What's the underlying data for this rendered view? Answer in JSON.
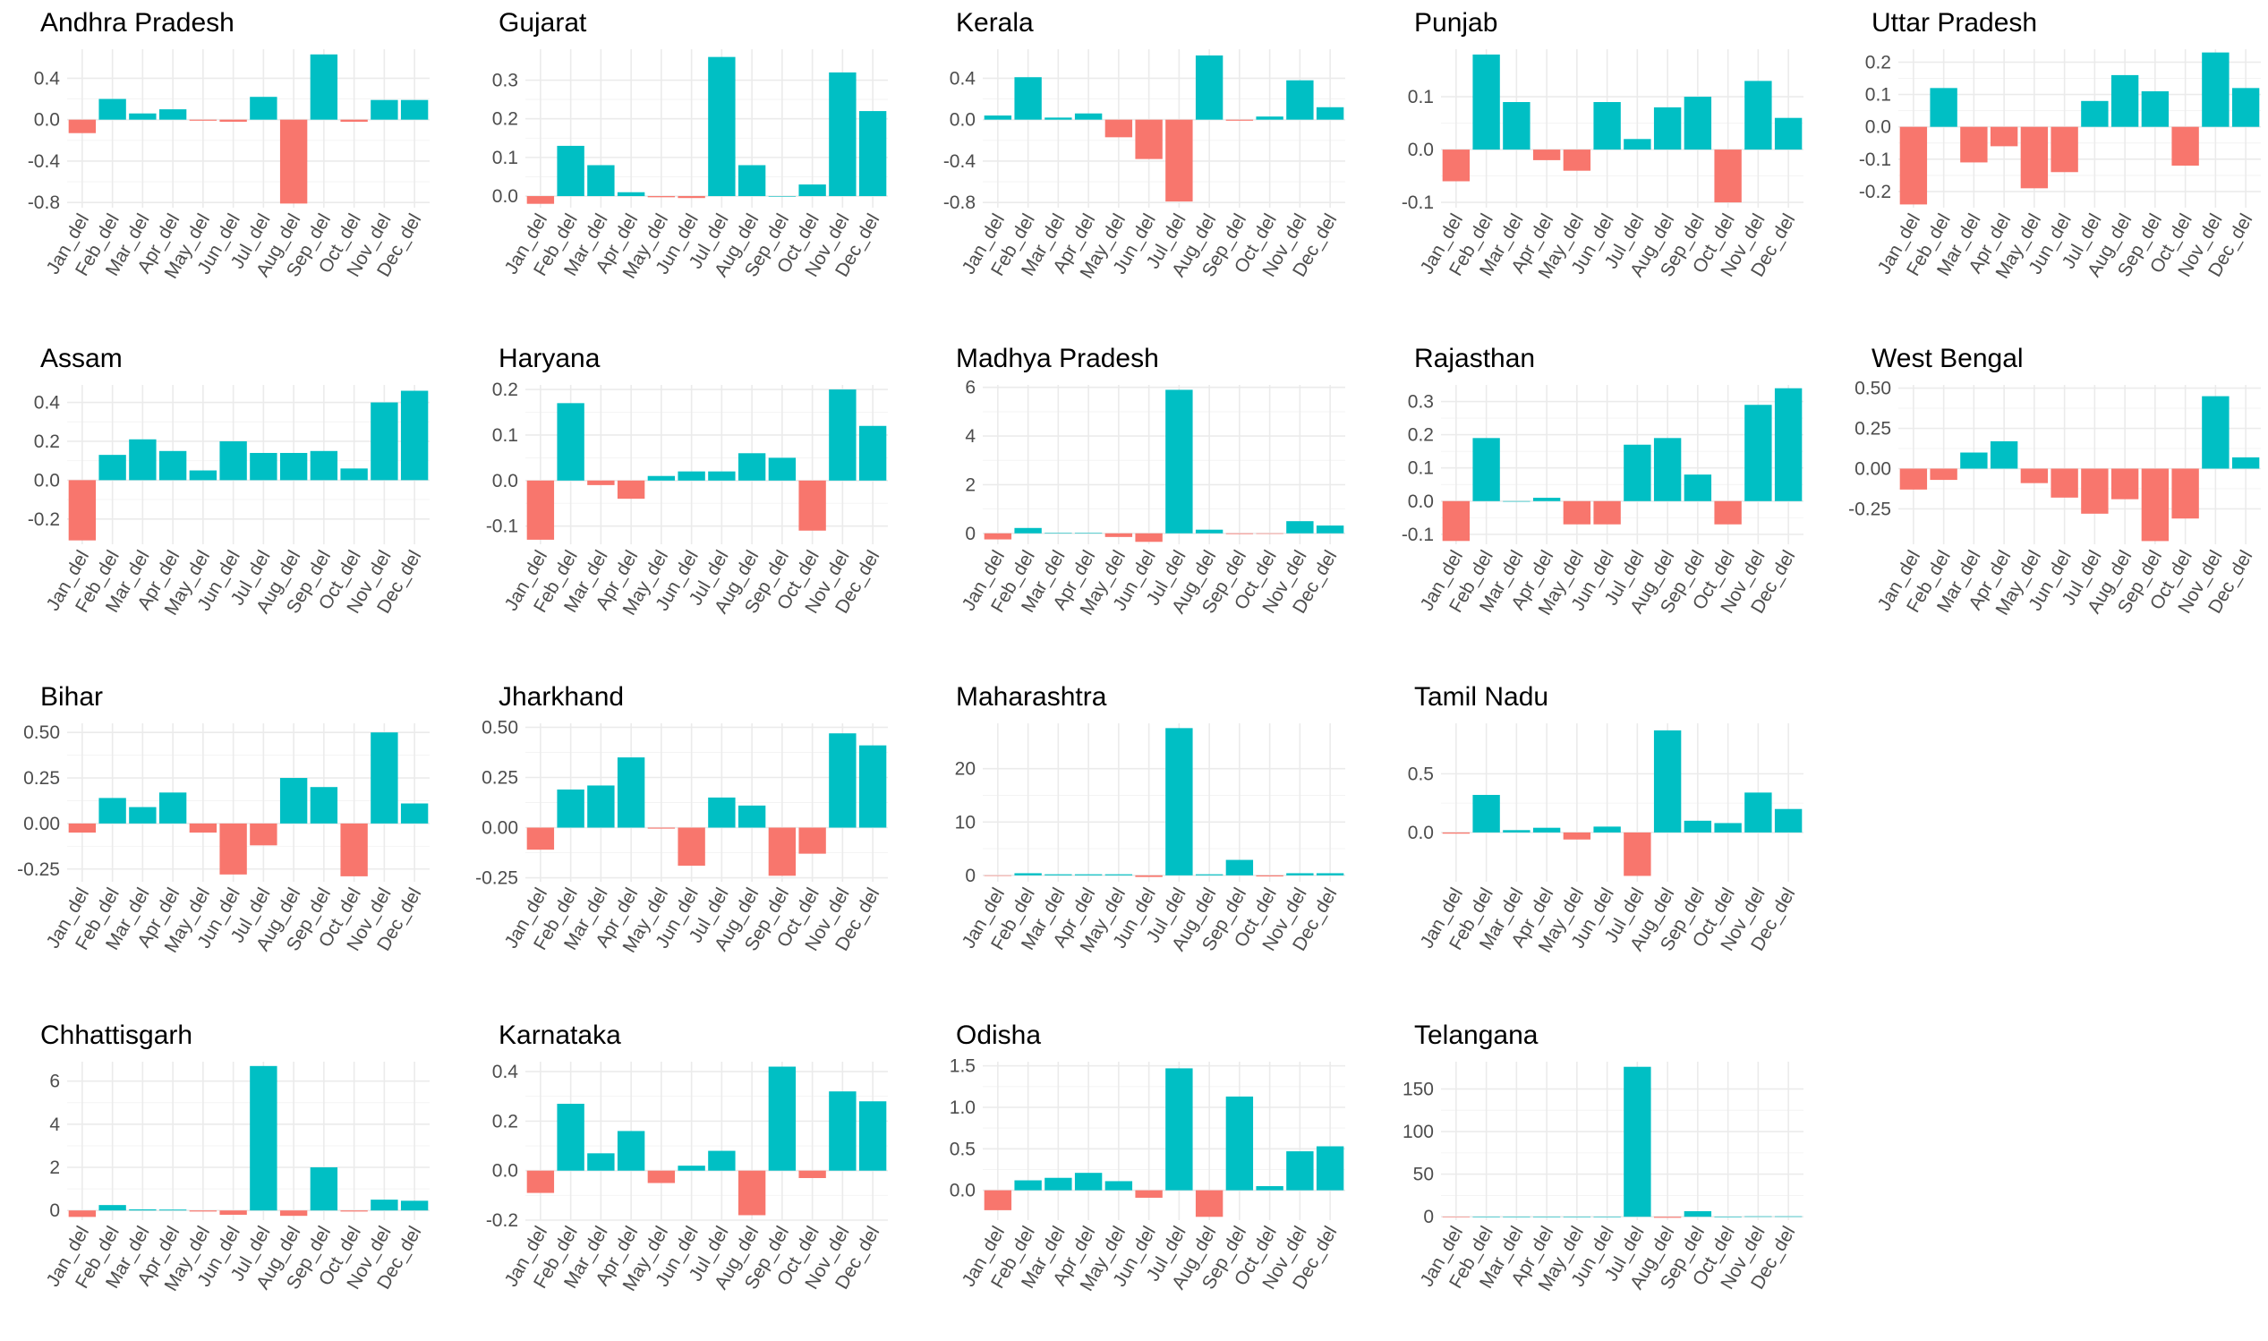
{
  "colors": {
    "positive": "#00BFC4",
    "negative": "#F8766D",
    "grid": "#ebebeb",
    "text": "#4d4d4d"
  },
  "chart_data": [
    {
      "type": "bar",
      "title": "Andhra Pradesh",
      "categories": [
        "Jan_del",
        "Feb_del",
        "Mar_del",
        "Apr_del",
        "May_del",
        "Jun_del",
        "Jul_del",
        "Aug_del",
        "Sep_del",
        "Oct_del",
        "Nov_del",
        "Dec_del"
      ],
      "values": [
        -0.13,
        0.2,
        0.06,
        0.1,
        -0.01,
        -0.02,
        0.22,
        -0.81,
        0.63,
        -0.02,
        0.19,
        0.19
      ],
      "yticks": [
        -0.8,
        -0.4,
        0.0,
        0.4
      ],
      "ytick_labels": [
        "-0.8",
        "-0.4",
        "0.0",
        "0.4"
      ],
      "ylim": [
        -0.85,
        0.68
      ],
      "grid": true
    },
    {
      "type": "bar",
      "title": "Gujarat",
      "categories": [
        "Jan_del",
        "Feb_del",
        "Mar_del",
        "Apr_del",
        "May_del",
        "Jun_del",
        "Jul_del",
        "Aug_del",
        "Sep_del",
        "Oct_del",
        "Nov_del",
        "Dec_del"
      ],
      "values": [
        -0.02,
        0.13,
        0.08,
        0.01,
        -0.003,
        -0.005,
        0.36,
        0.08,
        0.0,
        0.03,
        0.32,
        0.22
      ],
      "yticks": [
        0.0,
        0.1,
        0.2,
        0.3
      ],
      "ytick_labels": [
        "0.0",
        "0.1",
        "0.2",
        "0.3"
      ],
      "ylim": [
        -0.03,
        0.38
      ],
      "grid": true
    },
    {
      "type": "bar",
      "title": "Kerala",
      "categories": [
        "Jan_del",
        "Feb_del",
        "Mar_del",
        "Apr_del",
        "May_del",
        "Jun_del",
        "Jul_del",
        "Aug_del",
        "Sep_del",
        "Oct_del",
        "Nov_del",
        "Dec_del"
      ],
      "values": [
        0.04,
        0.41,
        0.02,
        0.06,
        -0.17,
        -0.38,
        -0.79,
        0.62,
        -0.01,
        0.03,
        0.38,
        0.12
      ],
      "yticks": [
        -0.8,
        -0.4,
        0.0,
        0.4
      ],
      "ytick_labels": [
        "-0.8",
        "-0.4",
        "0.0",
        "0.4"
      ],
      "ylim": [
        -0.85,
        0.68
      ],
      "grid": true
    },
    {
      "type": "bar",
      "title": "Punjab",
      "categories": [
        "Jan_del",
        "Feb_del",
        "Mar_del",
        "Apr_del",
        "May_del",
        "Jun_del",
        "Jul_del",
        "Aug_del",
        "Sep_del",
        "Oct_del",
        "Nov_del",
        "Dec_del"
      ],
      "values": [
        -0.06,
        0.18,
        0.09,
        -0.02,
        -0.04,
        0.09,
        0.02,
        0.08,
        0.1,
        -0.1,
        0.13,
        0.06
      ],
      "yticks": [
        -0.1,
        0.0,
        0.1
      ],
      "ytick_labels": [
        "-0.1",
        "0.0",
        "0.1"
      ],
      "ylim": [
        -0.11,
        0.19
      ],
      "grid": true
    },
    {
      "type": "bar",
      "title": "Uttar Pradesh",
      "categories": [
        "Jan_del",
        "Feb_del",
        "Mar_del",
        "Apr_del",
        "May_del",
        "Jun_del",
        "Jul_del",
        "Aug_del",
        "Sep_del",
        "Oct_del",
        "Nov_del",
        "Dec_del"
      ],
      "values": [
        -0.24,
        0.12,
        -0.11,
        -0.06,
        -0.19,
        -0.14,
        0.08,
        0.16,
        0.11,
        -0.12,
        0.23,
        0.12
      ],
      "yticks": [
        -0.2,
        -0.1,
        0.0,
        0.1,
        0.2
      ],
      "ytick_labels": [
        "-0.2",
        "-0.1",
        "0.0",
        "0.1",
        "0.2"
      ],
      "ylim": [
        -0.25,
        0.24
      ],
      "grid": true
    },
    {
      "type": "bar",
      "title": "Assam",
      "categories": [
        "Jan_del",
        "Feb_del",
        "Mar_del",
        "Apr_del",
        "May_del",
        "Jun_del",
        "Jul_del",
        "Aug_del",
        "Sep_del",
        "Oct_del",
        "Nov_del",
        "Dec_del"
      ],
      "values": [
        -0.31,
        0.13,
        0.21,
        0.15,
        0.05,
        0.2,
        0.14,
        0.14,
        0.15,
        0.06,
        0.4,
        0.46
      ],
      "yticks": [
        -0.2,
        0.0,
        0.2,
        0.4
      ],
      "ytick_labels": [
        "-0.2",
        "0.0",
        "0.2",
        "0.4"
      ],
      "ylim": [
        -0.33,
        0.49
      ],
      "grid": true
    },
    {
      "type": "bar",
      "title": "Haryana",
      "categories": [
        "Jan_del",
        "Feb_del",
        "Mar_del",
        "Apr_del",
        "May_del",
        "Jun_del",
        "Jul_del",
        "Aug_del",
        "Sep_del",
        "Oct_del",
        "Nov_del",
        "Dec_del"
      ],
      "values": [
        -0.13,
        0.17,
        -0.01,
        -0.04,
        0.01,
        0.02,
        0.02,
        0.06,
        0.05,
        -0.11,
        0.2,
        0.12
      ],
      "yticks": [
        -0.1,
        0.0,
        0.1,
        0.2
      ],
      "ytick_labels": [
        "-0.1",
        "0.0",
        "0.1",
        "0.2"
      ],
      "ylim": [
        -0.14,
        0.21
      ],
      "grid": true
    },
    {
      "type": "bar",
      "title": "Madhya Pradesh",
      "categories": [
        "Jan_del",
        "Feb_del",
        "Mar_del",
        "Apr_del",
        "May_del",
        "Jun_del",
        "Jul_del",
        "Aug_del",
        "Sep_del",
        "Oct_del",
        "Nov_del",
        "Dec_del"
      ],
      "values": [
        -0.25,
        0.22,
        0.02,
        0.02,
        -0.15,
        -0.35,
        5.9,
        0.15,
        -0.03,
        -0.02,
        0.5,
        0.32
      ],
      "yticks": [
        0,
        2,
        4,
        6
      ],
      "ytick_labels": [
        "0",
        "2",
        "4",
        "6"
      ],
      "ylim": [
        -0.45,
        6.1
      ],
      "grid": true
    },
    {
      "type": "bar",
      "title": "Rajasthan",
      "categories": [
        "Jan_del",
        "Feb_del",
        "Mar_del",
        "Apr_del",
        "May_del",
        "Jun_del",
        "Jul_del",
        "Aug_del",
        "Sep_del",
        "Oct_del",
        "Nov_del",
        "Dec_del"
      ],
      "values": [
        -0.12,
        0.19,
        0.0,
        0.01,
        -0.07,
        -0.07,
        0.17,
        0.19,
        0.08,
        -0.07,
        0.29,
        0.34
      ],
      "yticks": [
        -0.1,
        0.0,
        0.1,
        0.2,
        0.3
      ],
      "ytick_labels": [
        "-0.1",
        "0.0",
        "0.1",
        "0.2",
        "0.3"
      ],
      "ylim": [
        -0.13,
        0.35
      ],
      "grid": true
    },
    {
      "type": "bar",
      "title": "West Bengal",
      "categories": [
        "Jan_del",
        "Feb_del",
        "Mar_del",
        "Apr_del",
        "May_del",
        "Jun_del",
        "Jul_del",
        "Aug_del",
        "Sep_del",
        "Oct_del",
        "Nov_del",
        "Dec_del"
      ],
      "values": [
        -0.13,
        -0.07,
        0.1,
        0.17,
        -0.09,
        -0.18,
        -0.28,
        -0.19,
        -0.45,
        -0.31,
        0.45,
        0.07
      ],
      "yticks": [
        -0.25,
        0.0,
        0.25,
        0.5
      ],
      "ytick_labels": [
        "-0.25",
        "0.00",
        "0.25",
        "0.50"
      ],
      "ylim": [
        -0.47,
        0.52
      ],
      "grid": true
    },
    {
      "type": "bar",
      "title": "Bihar",
      "categories": [
        "Jan_del",
        "Feb_del",
        "Mar_del",
        "Apr_del",
        "May_del",
        "Jun_del",
        "Jul_del",
        "Aug_del",
        "Sep_del",
        "Oct_del",
        "Nov_del",
        "Dec_del"
      ],
      "values": [
        -0.05,
        0.14,
        0.09,
        0.17,
        -0.05,
        -0.28,
        -0.12,
        0.25,
        0.2,
        -0.29,
        0.5,
        0.11
      ],
      "yticks": [
        -0.25,
        0.0,
        0.25,
        0.5
      ],
      "ytick_labels": [
        "-0.25",
        "0.00",
        "0.25",
        "0.50"
      ],
      "ylim": [
        -0.32,
        0.55
      ],
      "grid": true
    },
    {
      "type": "bar",
      "title": "Jharkhand",
      "categories": [
        "Jan_del",
        "Feb_del",
        "Mar_del",
        "Apr_del",
        "May_del",
        "Jun_del",
        "Jul_del",
        "Aug_del",
        "Sep_del",
        "Oct_del",
        "Nov_del",
        "Dec_del"
      ],
      "values": [
        -0.11,
        0.19,
        0.21,
        0.35,
        -0.005,
        -0.19,
        0.15,
        0.11,
        -0.24,
        -0.13,
        0.47,
        0.41
      ],
      "yticks": [
        -0.25,
        0.0,
        0.25,
        0.5
      ],
      "ytick_labels": [
        "-0.25",
        "0.00",
        "0.25",
        "0.50"
      ],
      "ylim": [
        -0.27,
        0.52
      ],
      "grid": true
    },
    {
      "type": "bar",
      "title": "Maharashtra",
      "categories": [
        "Jan_del",
        "Feb_del",
        "Mar_del",
        "Apr_del",
        "May_del",
        "Jun_del",
        "Jul_del",
        "Aug_del",
        "Sep_del",
        "Oct_del",
        "Nov_del",
        "Dec_del"
      ],
      "values": [
        -0.1,
        0.4,
        0.2,
        0.2,
        0.2,
        -0.3,
        27.6,
        0.2,
        2.9,
        -0.2,
        0.4,
        0.4
      ],
      "yticks": [
        0,
        10,
        20
      ],
      "ytick_labels": [
        "0",
        "10",
        "20"
      ],
      "ylim": [
        -1.2,
        28.5
      ],
      "grid": true
    },
    {
      "type": "bar",
      "title": "Tamil Nadu",
      "categories": [
        "Jan_del",
        "Feb_del",
        "Mar_del",
        "Apr_del",
        "May_del",
        "Jun_del",
        "Jul_del",
        "Aug_del",
        "Sep_del",
        "Oct_del",
        "Nov_del",
        "Dec_del"
      ],
      "values": [
        -0.01,
        0.32,
        0.02,
        0.04,
        -0.06,
        0.05,
        -0.37,
        0.87,
        0.1,
        0.08,
        0.34,
        0.2
      ],
      "yticks": [
        0.0,
        0.5
      ],
      "ytick_labels": [
        "0.0",
        "0.5"
      ],
      "ylim": [
        -0.42,
        0.93
      ],
      "grid": true
    },
    {
      "type": "bar",
      "title": "Chhattisgarh",
      "categories": [
        "Jan_del",
        "Feb_del",
        "Mar_del",
        "Apr_del",
        "May_del",
        "Jun_del",
        "Jul_del",
        "Aug_del",
        "Sep_del",
        "Oct_del",
        "Nov_del",
        "Dec_del"
      ],
      "values": [
        -0.3,
        0.25,
        0.05,
        0.04,
        -0.05,
        -0.2,
        6.7,
        -0.25,
        2.0,
        -0.05,
        0.5,
        0.45
      ],
      "yticks": [
        0,
        2,
        4,
        6
      ],
      "ytick_labels": [
        "0",
        "2",
        "4",
        "6"
      ],
      "ylim": [
        -0.45,
        6.9
      ],
      "grid": true
    },
    {
      "type": "bar",
      "title": "Karnataka",
      "categories": [
        "Jan_del",
        "Feb_del",
        "Mar_del",
        "Apr_del",
        "May_del",
        "Jun_del",
        "Jul_del",
        "Aug_del",
        "Sep_del",
        "Oct_del",
        "Nov_del",
        "Dec_del"
      ],
      "values": [
        -0.09,
        0.27,
        0.07,
        0.16,
        -0.05,
        0.02,
        0.08,
        -0.18,
        0.42,
        -0.03,
        0.32,
        0.28
      ],
      "yticks": [
        -0.2,
        0.0,
        0.2,
        0.4
      ],
      "ytick_labels": [
        "-0.2",
        "0.0",
        "0.2",
        "0.4"
      ],
      "ylim": [
        -0.2,
        0.44
      ],
      "grid": true
    },
    {
      "type": "bar",
      "title": "Odisha",
      "categories": [
        "Jan_del",
        "Feb_del",
        "Mar_del",
        "Apr_del",
        "May_del",
        "Jun_del",
        "Jul_del",
        "Aug_del",
        "Sep_del",
        "Oct_del",
        "Nov_del",
        "Dec_del"
      ],
      "values": [
        -0.24,
        0.12,
        0.15,
        0.21,
        0.11,
        -0.09,
        1.47,
        -0.32,
        1.13,
        0.05,
        0.47,
        0.53
      ],
      "yticks": [
        0.0,
        0.5,
        1.0,
        1.5
      ],
      "ytick_labels": [
        "0.0",
        "0.5",
        "1.0",
        "1.5"
      ],
      "ylim": [
        -0.36,
        1.55
      ],
      "grid": true
    },
    {
      "type": "bar",
      "title": "Telangana",
      "categories": [
        "Jan_del",
        "Feb_del",
        "Mar_del",
        "Apr_del",
        "May_del",
        "Jun_del",
        "Jul_del",
        "Aug_del",
        "Sep_del",
        "Oct_del",
        "Nov_del",
        "Dec_del"
      ],
      "values": [
        -0.3,
        0.2,
        0.1,
        0.1,
        0.1,
        0.2,
        176,
        -1.2,
        6.5,
        0.2,
        0.5,
        0.5
      ],
      "yticks": [
        0,
        50,
        100,
        150
      ],
      "ytick_labels": [
        "0",
        "50",
        "100",
        "150"
      ],
      "ylim": [
        -4,
        182
      ],
      "grid": true
    }
  ]
}
